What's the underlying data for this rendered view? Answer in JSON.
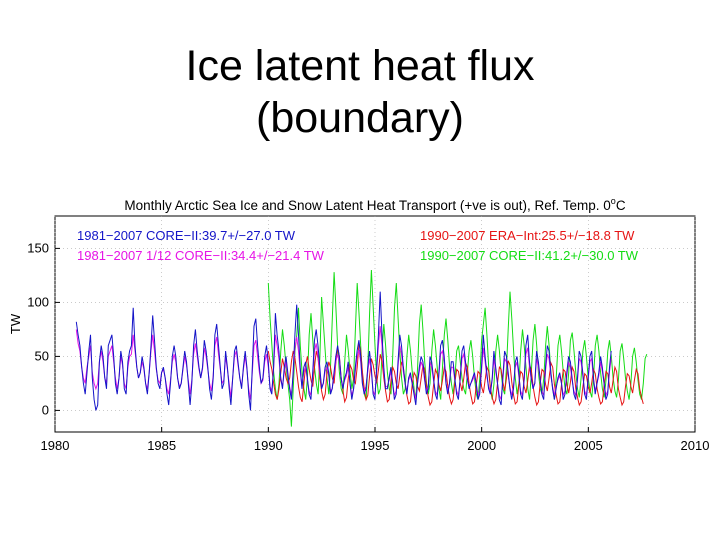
{
  "slide": {
    "title_line1": "Ice latent heat flux",
    "title_line2": "(boundary)"
  },
  "chart_data": {
    "type": "line",
    "title": "Monthly Arctic Sea Ice and Snow Latent Heat Transport (+ve is out), Ref. Temp. 0",
    "title_superscript": "o",
    "title_unit": "C",
    "xlabel": "",
    "ylabel": "TW",
    "xlim": [
      1980,
      2010
    ],
    "ylim": [
      -20,
      180
    ],
    "xticks": [
      "1980",
      "1985",
      "1990",
      "1995",
      "2000",
      "2005",
      "2010"
    ],
    "yticks": [
      "0",
      "50",
      "100",
      "150"
    ],
    "grid": "dotted",
    "legend_placement": "top, two columns inside axes",
    "series": [
      {
        "name": "1981−2007 CORE−II:39.7+/−27.0 TW",
        "color": "#1414c8",
        "x_start": 1981.0,
        "x_step": 0.0833,
        "values": [
          82,
          70,
          60,
          40,
          25,
          15,
          35,
          55,
          70,
          30,
          10,
          0,
          5,
          45,
          60,
          50,
          30,
          20,
          60,
          65,
          70,
          50,
          25,
          15,
          30,
          55,
          45,
          20,
          15,
          45,
          55,
          60,
          95,
          60,
          40,
          30,
          35,
          50,
          40,
          25,
          15,
          35,
          60,
          88,
          65,
          40,
          25,
          20,
          35,
          40,
          30,
          15,
          5,
          25,
          50,
          60,
          50,
          30,
          20,
          25,
          40,
          55,
          45,
          25,
          5,
          25,
          60,
          75,
          55,
          40,
          30,
          40,
          65,
          55,
          40,
          20,
          10,
          30,
          70,
          80,
          60,
          40,
          20,
          25,
          55,
          40,
          20,
          5,
          30,
          55,
          60,
          45,
          30,
          20,
          40,
          55,
          40,
          15,
          0,
          40,
          78,
          85,
          60,
          40,
          25,
          30,
          50,
          60,
          45,
          20,
          15,
          40,
          90,
          70,
          55,
          30,
          20,
          40,
          50,
          35,
          20,
          10,
          35,
          70,
          98,
          70,
          40,
          20,
          40,
          45,
          30,
          15,
          10,
          35,
          65,
          75,
          60,
          40,
          20,
          25,
          40,
          45,
          35,
          15,
          20,
          35,
          50,
          60,
          50,
          30,
          20,
          30,
          35,
          45,
          25,
          10,
          20,
          40,
          55,
          65,
          50,
          25,
          15,
          20,
          40,
          55,
          40,
          15,
          10,
          40,
          70,
          110,
          70,
          40,
          20,
          20,
          30,
          40,
          25,
          10,
          15,
          45,
          70,
          60,
          40,
          25,
          15,
          30,
          35,
          25,
          15,
          5,
          25,
          40,
          50,
          45,
          30,
          15,
          20,
          50,
          45,
          30,
          15,
          10,
          35,
          60,
          65,
          50,
          25,
          15,
          25,
          45,
          45,
          30,
          15,
          10,
          30,
          55,
          60,
          45,
          30,
          20,
          25,
          30,
          35,
          25,
          10,
          15,
          40,
          70,
          50,
          35,
          20,
          15,
          30,
          55,
          40,
          25,
          10,
          5,
          30,
          55,
          50,
          35,
          20,
          10,
          20,
          45,
          50,
          35,
          15,
          10,
          30,
          60,
          70,
          45,
          30,
          20,
          25,
          55,
          45,
          30,
          15,
          10,
          40,
          60,
          55,
          35,
          20,
          10,
          20,
          30,
          35,
          25,
          10,
          15,
          35,
          50,
          45,
          30,
          15,
          10,
          30,
          55,
          50,
          35,
          15,
          10,
          30,
          50,
          55,
          30,
          15,
          25,
          35,
          50,
          40,
          25,
          10,
          15,
          40,
          55
        ]
      },
      {
        "name": "1981−2007 1/12 CORE−II:34.4+/−21.4 TW",
        "color": "#e614e6",
        "x_start": 1981.0,
        "x_step": 0.0833,
        "values": [
          75,
          62,
          55,
          40,
          30,
          25,
          40,
          50,
          60,
          35,
          25,
          20,
          25,
          45,
          55,
          45,
          30,
          25,
          50,
          55,
          60,
          45,
          30,
          20,
          30,
          50,
          42,
          25,
          20,
          40,
          50,
          52,
          70,
          55,
          40,
          30,
          35,
          45,
          38,
          25,
          20,
          35,
          55,
          70,
          55,
          38,
          28,
          25,
          35,
          38,
          30,
          20,
          15,
          28,
          45,
          52,
          45,
          30,
          22,
          25,
          38,
          50,
          42,
          28,
          15,
          28,
          52,
          62,
          50,
          38,
          30,
          38,
          58,
          50,
          38,
          25,
          18,
          32,
          60,
          68,
          52,
          38,
          25,
          28,
          50,
          38,
          25,
          12,
          30,
          50,
          55,
          42,
          30,
          22,
          38,
          50,
          38,
          20,
          10,
          35,
          60,
          65,
          50,
          35,
          25,
          28,
          45,
          52,
          40,
          22,
          18,
          38,
          70,
          60,
          48,
          30,
          22,
          36,
          45,
          32,
          22,
          14,
          32,
          58,
          68,
          55,
          36,
          22,
          36,
          40,
          28,
          18,
          14,
          32,
          55,
          62,
          50,
          35,
          22,
          25,
          36,
          40,
          32,
          18,
          20,
          32,
          45,
          52,
          45,
          30,
          22,
          28,
          32,
          40,
          25,
          14,
          20,
          36,
          50,
          56,
          45,
          25,
          18,
          22,
          36,
          48,
          36,
          18,
          14,
          36,
          60,
          78,
          60,
          36,
          22,
          22,
          28,
          36,
          25,
          14,
          18,
          40,
          60,
          52,
          36,
          25,
          18,
          28,
          32,
          25,
          18,
          10,
          25,
          36,
          45,
          40,
          28,
          18,
          22,
          45,
          40,
          28,
          18,
          14,
          32,
          52,
          55,
          45,
          25,
          18,
          25,
          40,
          40,
          28,
          18,
          14,
          28,
          48,
          52,
          40,
          28,
          22,
          25,
          28,
          32,
          25,
          14,
          18,
          36,
          58,
          45,
          32,
          22,
          18,
          28,
          48,
          36,
          25,
          14,
          10,
          28,
          48,
          45,
          32,
          22,
          14,
          22,
          40,
          45,
          32,
          18,
          14,
          28,
          52,
          58,
          40,
          28,
          22,
          25,
          48,
          40,
          28,
          18,
          14,
          36,
          52,
          48,
          32,
          22,
          14,
          22,
          28,
          32,
          25,
          14,
          18,
          32,
          45,
          40,
          28,
          18,
          14,
          28,
          48,
          45,
          32,
          18,
          14,
          28,
          45,
          48,
          28,
          18,
          25,
          32,
          45,
          36,
          25,
          14,
          18,
          36,
          48
        ]
      },
      {
        "name": "1990−2007 ERA−Int:25.5+/−18.8 TW",
        "color": "#e61414",
        "x_start": 1990.0,
        "x_step": 0.0833,
        "values": [
          55,
          45,
          38,
          25,
          15,
          10,
          20,
          35,
          48,
          40,
          30,
          25,
          30,
          45,
          55,
          48,
          35,
          22,
          12,
          8,
          25,
          42,
          50,
          38,
          28,
          22,
          40,
          55,
          48,
          30,
          18,
          10,
          15,
          35,
          45,
          40,
          30,
          25,
          45,
          58,
          50,
          30,
          18,
          8,
          12,
          30,
          42,
          38,
          28,
          25,
          40,
          62,
          55,
          35,
          20,
          10,
          14,
          32,
          48,
          42,
          32,
          25,
          38,
          52,
          45,
          30,
          18,
          8,
          10,
          28,
          40,
          36,
          25,
          20,
          32,
          45,
          40,
          25,
          14,
          6,
          8,
          25,
          35,
          32,
          22,
          18,
          30,
          42,
          38,
          22,
          12,
          5,
          8,
          24,
          38,
          34,
          24,
          18,
          28,
          40,
          36,
          22,
          12,
          6,
          10,
          26,
          38,
          36,
          25,
          18,
          30,
          44,
          40,
          24,
          14,
          6,
          8,
          24,
          36,
          34,
          22,
          16,
          28,
          40,
          36,
          20,
          12,
          6,
          10,
          26,
          40,
          38,
          26,
          18,
          30,
          46,
          42,
          26,
          14,
          6,
          8,
          24,
          36,
          34,
          22,
          16,
          28,
          42,
          38,
          22,
          12,
          5,
          8,
          25,
          38,
          36,
          24,
          18,
          30,
          44,
          40,
          24,
          14,
          6,
          8,
          24,
          38,
          36,
          24,
          16,
          26,
          40,
          36,
          20,
          12,
          5,
          8,
          22,
          34,
          32,
          22,
          16,
          26,
          38,
          34,
          20,
          12,
          6,
          8,
          24,
          36,
          34,
          22,
          16,
          28,
          40,
          36,
          20,
          12,
          5,
          8,
          22,
          34,
          32,
          22,
          16,
          28,
          38,
          34,
          20,
          12,
          6
        ]
      },
      {
        "name": "1990−2007 CORE−II:41.2+/−30.0 TW",
        "color": "#14dc14",
        "x_start": 1990.0,
        "x_step": 0.0833,
        "values": [
          118,
          85,
          60,
          35,
          20,
          10,
          25,
          55,
          75,
          60,
          40,
          25,
          10,
          -15,
          20,
          55,
          70,
          95,
          60,
          35,
          20,
          10,
          30,
          70,
          90,
          65,
          40,
          25,
          15,
          50,
          105,
          80,
          55,
          30,
          15,
          40,
          85,
          128,
          95,
          60,
          35,
          20,
          15,
          45,
          70,
          55,
          35,
          20,
          30,
          75,
          118,
          90,
          60,
          30,
          15,
          10,
          40,
          90,
          130,
          95,
          60,
          30,
          15,
          20,
          55,
          80,
          60,
          35,
          20,
          15,
          50,
          95,
          118,
          85,
          55,
          30,
          15,
          20,
          50,
          70,
          55,
          35,
          20,
          10,
          40,
          80,
          98,
          75,
          45,
          25,
          15,
          25,
          55,
          75,
          60,
          40,
          20,
          10,
          40,
          70,
          85,
          65,
          40,
          25,
          15,
          30,
          55,
          60,
          45,
          30,
          20,
          15,
          35,
          55,
          65,
          50,
          30,
          15,
          10,
          30,
          65,
          80,
          95,
          70,
          40,
          20,
          10,
          25,
          55,
          70,
          55,
          35,
          20,
          15,
          40,
          75,
          110,
          85,
          55,
          30,
          15,
          25,
          55,
          75,
          60,
          40,
          20,
          10,
          35,
          65,
          80,
          60,
          35,
          20,
          15,
          30,
          60,
          78,
          60,
          35,
          20,
          10,
          30,
          60,
          70,
          55,
          35,
          20,
          15,
          35,
          65,
          72,
          55,
          35,
          20,
          12,
          30,
          55,
          65,
          50,
          30,
          18,
          12,
          30,
          60,
          70,
          55,
          35,
          20,
          12,
          28,
          55,
          65,
          50,
          30,
          18,
          12,
          28,
          55,
          62,
          48,
          30,
          18,
          10,
          25,
          50,
          58,
          45,
          28,
          15,
          10,
          25,
          48,
          52
        ]
      }
    ]
  }
}
